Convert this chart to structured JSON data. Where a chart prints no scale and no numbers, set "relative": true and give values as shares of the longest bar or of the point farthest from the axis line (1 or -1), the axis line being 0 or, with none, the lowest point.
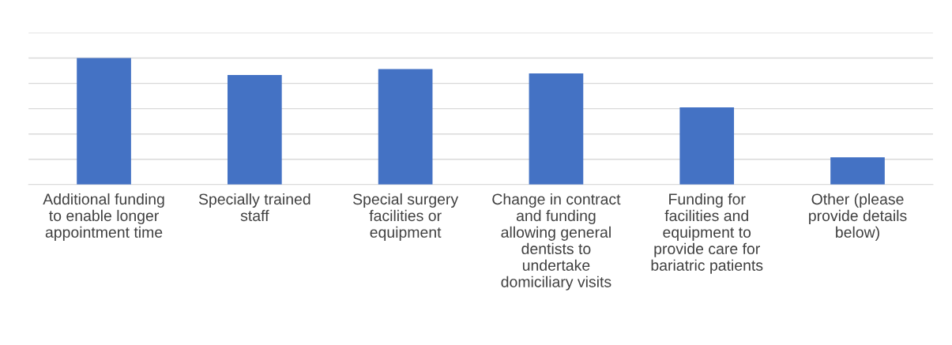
{
  "chart_data": {
    "type": "bar",
    "relative": true,
    "grid": "y",
    "categories": [
      "Additional funding to enable longer appointment time",
      "Specially trained staff",
      "Special surgery facilities or equipment",
      "Change in contract and funding allowing general dentists to undertake domiciliary visits",
      "Funding for facilities and equipment to provide care for bariatric patients",
      "Other (please provide details below)"
    ],
    "values": [
      1,
      0.866,
      0.913,
      0.879,
      0.611,
      0.215
    ],
    "color": "#4472c4"
  }
}
